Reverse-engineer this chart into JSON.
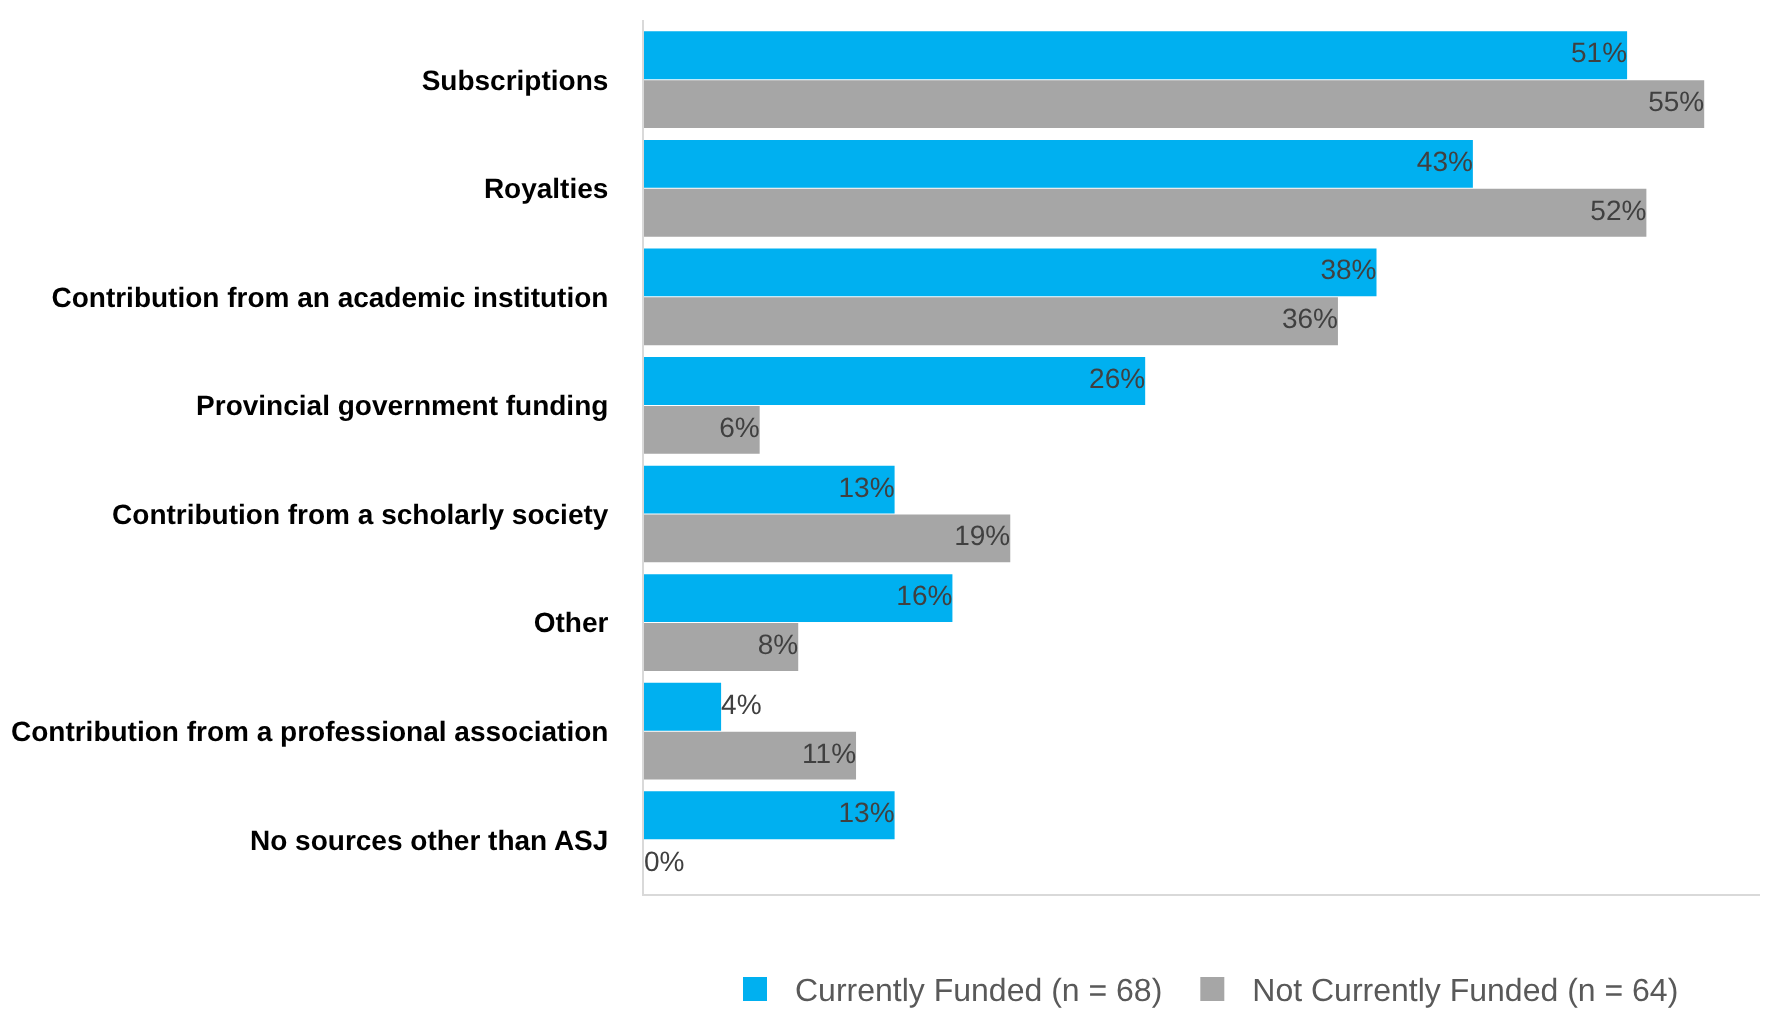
{
  "chart_data": {
    "type": "bar",
    "orientation": "horizontal",
    "categories": [
      "Subscriptions",
      "Royalties",
      "Contribution from an academic institution",
      "Provincial government funding",
      "Contribution from a scholarly society",
      "Other",
      "Contribution from a professional association",
      "No sources other than ASJ"
    ],
    "series": [
      {
        "name": "Currently Funded (n = 68)",
        "color": "#00b0f0",
        "values": [
          51,
          43,
          38,
          26,
          13,
          16,
          4,
          13
        ],
        "value_labels": [
          "51%",
          "43%",
          "38%",
          "26%",
          "13%",
          "16%",
          "4%",
          "13%"
        ]
      },
      {
        "name": "Not Currently Funded (n = 64)",
        "color": "#a6a6a6",
        "values": [
          55,
          52,
          36,
          6,
          19,
          8,
          11,
          0
        ],
        "value_labels": [
          "55%",
          "52%",
          "36%",
          "6%",
          "19%",
          "8%",
          "11%",
          "0%"
        ]
      }
    ],
    "tick_labels": "y",
    "legend": "bottom"
  }
}
